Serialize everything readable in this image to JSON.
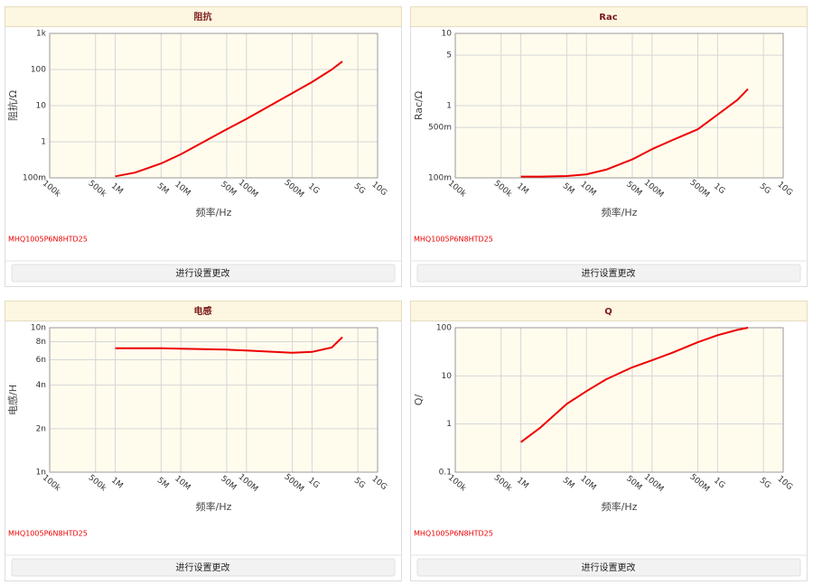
{
  "chart_data": [
    {
      "type": "line",
      "title": "阻抗",
      "xlabel": "频率/Hz",
      "ylabel": "阻抗/Ω",
      "xlog": true,
      "ylog": true,
      "grid": true,
      "xlim": [
        100000,
        10000000000
      ],
      "xticks": [
        {
          "value": 100000,
          "label": "100k"
        },
        {
          "value": 500000,
          "label": "500k"
        },
        {
          "value": 1000000,
          "label": "1M"
        },
        {
          "value": 5000000,
          "label": "5M"
        },
        {
          "value": 10000000,
          "label": "10M"
        },
        {
          "value": 50000000,
          "label": "50M"
        },
        {
          "value": 100000000,
          "label": "100M"
        },
        {
          "value": 500000000,
          "label": "500M"
        },
        {
          "value": 1000000000,
          "label": "1G"
        },
        {
          "value": 5000000000,
          "label": "5G"
        },
        {
          "value": 10000000000,
          "label": "10G"
        }
      ],
      "ylim": [
        0.1,
        1000
      ],
      "yticks": [
        {
          "value": 0.1,
          "label": "100m"
        },
        1,
        10,
        100,
        {
          "value": 1000,
          "label": "1k"
        }
      ],
      "x": [
        1000000,
        2000000,
        5000000,
        10000000,
        50000000,
        100000000,
        500000000,
        1000000000,
        2000000000,
        2900000000
      ],
      "series": [
        {
          "name": "MHQ1005P6N8HTD25",
          "color": "#ee0000",
          "values": [
            0.11,
            0.14,
            0.25,
            0.45,
            2.2,
            4.3,
            22,
            45,
            100,
            167
          ]
        }
      ],
      "annotation": "MHQ1005P6N8HTD25",
      "button": "进行设置更改"
    },
    {
      "type": "line",
      "title": "Rac",
      "xlabel": "频率/Hz",
      "ylabel": "Rac/Ω",
      "xlog": true,
      "ylog": true,
      "grid": true,
      "xlim": [
        100000,
        10000000000
      ],
      "xticks": [
        {
          "value": 100000,
          "label": "100k"
        },
        {
          "value": 500000,
          "label": "500k"
        },
        {
          "value": 1000000,
          "label": "1M"
        },
        {
          "value": 5000000,
          "label": "5M"
        },
        {
          "value": 10000000,
          "label": "10M"
        },
        {
          "value": 50000000,
          "label": "50M"
        },
        {
          "value": 100000000,
          "label": "100M"
        },
        {
          "value": 500000000,
          "label": "500M"
        },
        {
          "value": 1000000000,
          "label": "1G"
        },
        {
          "value": 5000000000,
          "label": "5G"
        },
        {
          "value": 10000000000,
          "label": "10G"
        }
      ],
      "ylim": [
        0.1,
        10
      ],
      "yticks": [
        {
          "value": 0.1,
          "label": "100m"
        },
        {
          "value": 0.5,
          "label": "500m"
        },
        1,
        5,
        10
      ],
      "x": [
        1000000,
        2000000,
        5000000,
        10000000,
        20000000,
        50000000,
        100000000,
        200000000,
        500000000,
        1000000000,
        2000000000,
        2900000000
      ],
      "series": [
        {
          "name": "MHQ1005P6N8HTD25",
          "color": "#ee0000",
          "values": [
            0.104,
            0.104,
            0.106,
            0.112,
            0.13,
            0.18,
            0.25,
            0.33,
            0.47,
            0.75,
            1.2,
            1.7
          ]
        }
      ],
      "annotation": "MHQ1005P6N8HTD25",
      "button": "进行设置更改"
    },
    {
      "type": "line",
      "title": "电感",
      "xlabel": "频率/Hz",
      "ylabel": "电感/H",
      "xlog": true,
      "ylog": true,
      "grid": true,
      "xlim": [
        100000,
        10000000000
      ],
      "xticks": [
        {
          "value": 100000,
          "label": "100k"
        },
        {
          "value": 500000,
          "label": "500k"
        },
        {
          "value": 1000000,
          "label": "1M"
        },
        {
          "value": 5000000,
          "label": "5M"
        },
        {
          "value": 10000000,
          "label": "10M"
        },
        {
          "value": 50000000,
          "label": "50M"
        },
        {
          "value": 100000000,
          "label": "100M"
        },
        {
          "value": 500000000,
          "label": "500M"
        },
        {
          "value": 1000000000,
          "label": "1G"
        },
        {
          "value": 5000000000,
          "label": "5G"
        },
        {
          "value": 10000000000,
          "label": "10G"
        }
      ],
      "ylim": [
        1e-09,
        1e-08
      ],
      "yticks": [
        {
          "value": 1e-09,
          "label": "1n"
        },
        {
          "value": 2e-09,
          "label": "2n"
        },
        {
          "value": 4e-09,
          "label": "4n"
        },
        {
          "value": 6e-09,
          "label": "6n"
        },
        {
          "value": 8e-09,
          "label": "8n"
        },
        {
          "value": 1e-08,
          "label": "10n"
        }
      ],
      "x": [
        1000000,
        5000000,
        10000000,
        50000000,
        100000000,
        500000000,
        1000000000,
        2000000000,
        2900000000
      ],
      "series": [
        {
          "name": "MHQ1005P6N8HTD25",
          "color": "#ee0000",
          "values": [
            7.2e-09,
            7.2e-09,
            7.15e-09,
            7.05e-09,
            6.95e-09,
            6.7e-09,
            6.8e-09,
            7.3e-09,
            8.6e-09
          ]
        }
      ],
      "annotation": "MHQ1005P6N8HTD25",
      "button": "进行设置更改"
    },
    {
      "type": "line",
      "title": "Q",
      "xlabel": "频率/Hz",
      "ylabel": "Q/",
      "xlog": true,
      "ylog": true,
      "grid": true,
      "xlim": [
        100000,
        10000000000
      ],
      "xticks": [
        {
          "value": 100000,
          "label": "100k"
        },
        {
          "value": 500000,
          "label": "500k"
        },
        {
          "value": 1000000,
          "label": "1M"
        },
        {
          "value": 5000000,
          "label": "5M"
        },
        {
          "value": 10000000,
          "label": "10M"
        },
        {
          "value": 50000000,
          "label": "50M"
        },
        {
          "value": 100000000,
          "label": "100M"
        },
        {
          "value": 500000000,
          "label": "500M"
        },
        {
          "value": 1000000000,
          "label": "1G"
        },
        {
          "value": 5000000000,
          "label": "5G"
        },
        {
          "value": 10000000000,
          "label": "10G"
        }
      ],
      "ylim": [
        0.1,
        100
      ],
      "yticks": [
        0.1,
        1,
        10,
        100
      ],
      "x": [
        1000000,
        2000000,
        5000000,
        10000000,
        20000000,
        50000000,
        100000000,
        200000000,
        500000000,
        1000000000,
        2000000000,
        2900000000
      ],
      "series": [
        {
          "name": "MHQ1005P6N8HTD25",
          "color": "#ee0000",
          "values": [
            0.42,
            0.85,
            2.6,
            4.8,
            8.5,
            15,
            21,
            30,
            50,
            70,
            90,
            100
          ]
        }
      ],
      "annotation": "MHQ1005P6N8HTD25",
      "button": "进行设置更改"
    }
  ]
}
